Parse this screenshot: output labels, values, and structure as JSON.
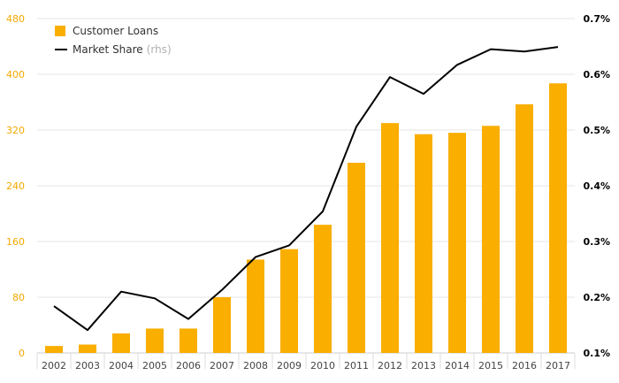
{
  "chart_data": {
    "type": "bar",
    "categories": [
      "2002",
      "2003",
      "2004",
      "2005",
      "2006",
      "2007",
      "2008",
      "2009",
      "2010",
      "2011",
      "2012",
      "2013",
      "2014",
      "2015",
      "2016",
      "2017"
    ],
    "series": [
      {
        "name": "Customer Loans",
        "type": "bar",
        "axis": "left",
        "color": "#f9ae00",
        "values": [
          10,
          12,
          28,
          35,
          35,
          80,
          134,
          149,
          184,
          273,
          330,
          314,
          316,
          326,
          357,
          387
        ]
      },
      {
        "name": "Market Share",
        "name_suffix": "(rhs)",
        "type": "line",
        "axis": "right",
        "color": "#000000",
        "values": [
          0.184,
          0.141,
          0.21,
          0.198,
          0.161,
          0.213,
          0.272,
          0.293,
          0.354,
          0.506,
          0.595,
          0.565,
          0.617,
          0.645,
          0.641,
          0.649
        ]
      }
    ],
    "left_axis": {
      "ylim": [
        0,
        480
      ],
      "ticks": [
        "0",
        "80",
        "160",
        "240",
        "320",
        "400",
        "480"
      ]
    },
    "right_axis": {
      "ylim": [
        0.1,
        0.7
      ],
      "ticks": [
        "0.1%",
        "0.2%",
        "0.3%",
        "0.4%",
        "0.5%",
        "0.6%",
        "0.7%"
      ]
    },
    "grid": true,
    "legend_position": "top-left"
  }
}
